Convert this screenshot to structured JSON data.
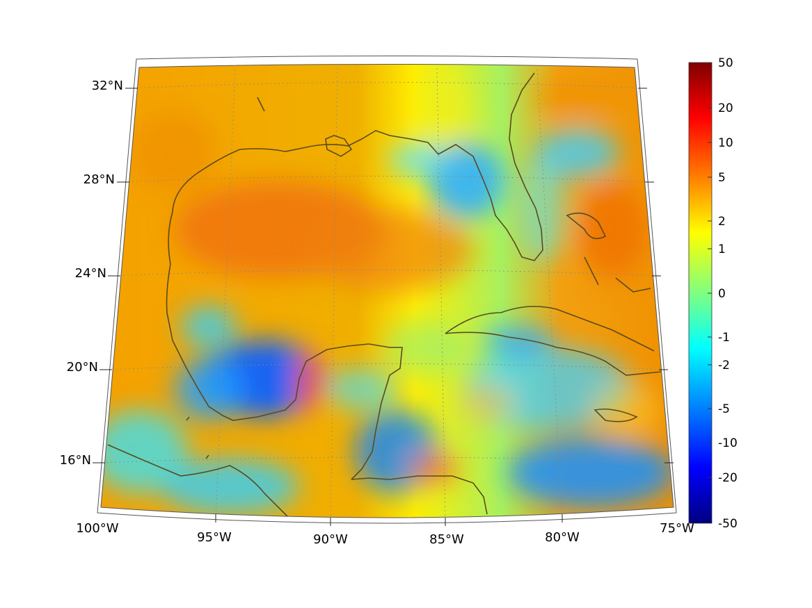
{
  "map": {
    "type": "map",
    "projection": "conic",
    "grid": true,
    "lon_range": [
      -100,
      -75
    ],
    "lat_range": [
      14,
      32
    ],
    "lon_ticks": [
      "100°W",
      "95°W",
      "90°W",
      "85°W",
      "80°W",
      "75°W"
    ],
    "lat_ticks": [
      "32°N",
      "28°N",
      "24°N",
      "20°N",
      "16°N"
    ],
    "coastline_color": "#5a4a1e",
    "colormap": "jet",
    "colorbar": {
      "placement": "right",
      "labels": [
        "50",
        "20",
        "10",
        "5",
        "2",
        "1",
        "0",
        "-1",
        "-2",
        "-5",
        "-10",
        "-20",
        "-50"
      ],
      "stops": [
        "#800000",
        "#ff0000",
        "#ff8000",
        "#ffff00",
        "#80ff80",
        "#00ffff",
        "#0080ff",
        "#0000ff",
        "#000080"
      ]
    }
  }
}
